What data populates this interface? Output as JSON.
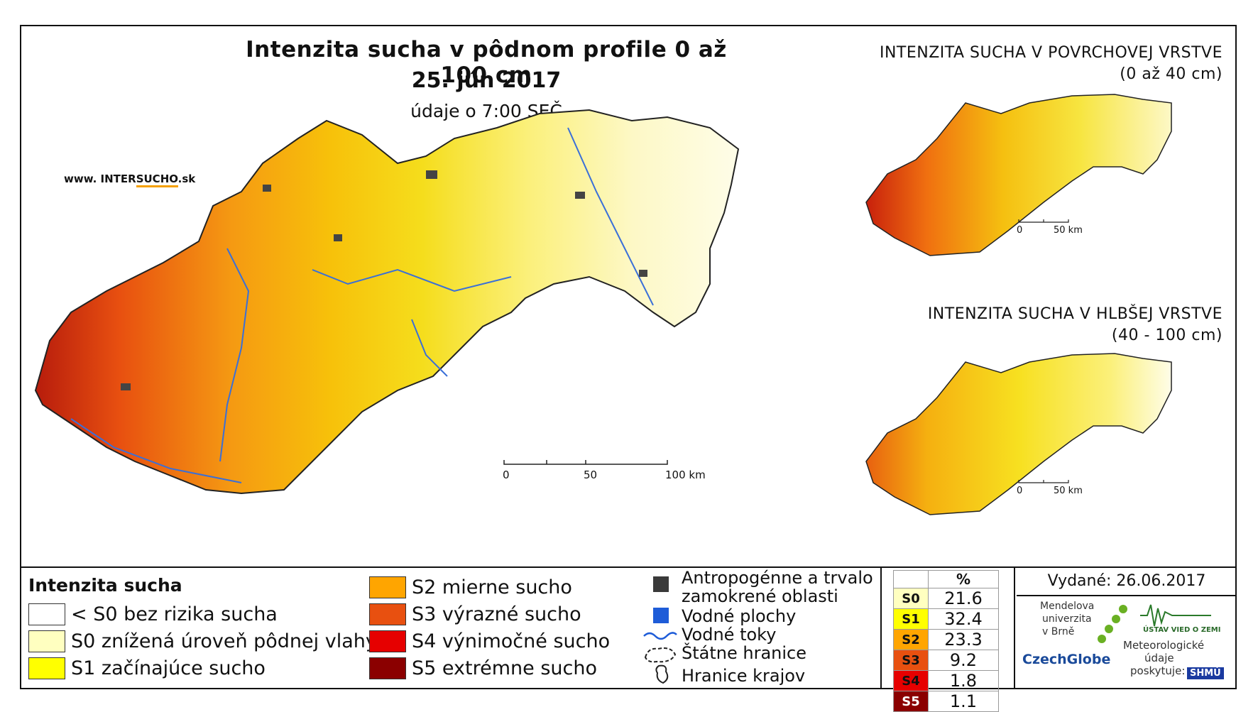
{
  "title": {
    "main": "Intenzita sucha v pôdnom profile 0 až 100 cm",
    "date": "25. jún 2017",
    "time": "údaje o 7:00 SEČ"
  },
  "website": {
    "prefix": "www. INTER",
    "accent": "SUCHO",
    "suffix": ".sk"
  },
  "main_scale": {
    "labels": [
      "0",
      "50",
      "100 km"
    ]
  },
  "insets": [
    {
      "title_line1": "INTENZITA SUCHA V POVRCHOVEJ VRSTVE",
      "title_line2": "(0 až 40 cm)",
      "scale_labels": [
        "0",
        "50 km"
      ]
    },
    {
      "title_line1": "INTENZITA SUCHA V HLBŠEJ VRSTVE",
      "title_line2": "(40 - 100 cm)",
      "scale_labels": [
        "0",
        "50 km"
      ]
    }
  ],
  "legend": {
    "title": "Intenzita sucha",
    "classes": [
      {
        "label": "< S0 bez rizika sucha",
        "color": "#ffffff"
      },
      {
        "label": "S0 znížená úroveň pôdnej vlahy",
        "color": "#ffffc0"
      },
      {
        "label": "S1 začínajúce sucho",
        "color": "#ffff00"
      },
      {
        "label": "S2 mierne sucho",
        "color": "#ffa500"
      },
      {
        "label": "S3 výrazné sucho",
        "color": "#e85010"
      },
      {
        "label": "S4 výnimočné sucho",
        "color": "#e60000"
      },
      {
        "label": "S5 extrémne sucho",
        "color": "#8b0000"
      }
    ],
    "other": {
      "anthropogenic_line1": "Antropogénne a trvalo",
      "anthropogenic_line2": "zamokrené oblasti",
      "water_areas": "Vodné plochy",
      "rivers": "Vodné toky",
      "borders": "Štátne hranice",
      "regions": "Hranice krajov"
    }
  },
  "percent_table": {
    "header": "%",
    "rows": [
      {
        "code": "S0",
        "value": "21.6",
        "color": "#ffffc0"
      },
      {
        "code": "S1",
        "value": "32.4",
        "color": "#ffff00"
      },
      {
        "code": "S2",
        "value": "23.3",
        "color": "#ffa500"
      },
      {
        "code": "S3",
        "value": "9.2",
        "color": "#e85010"
      },
      {
        "code": "S4",
        "value": "1.8",
        "color": "#e60000"
      },
      {
        "code": "S5",
        "value": "1.1",
        "color": "#8b0000"
      }
    ]
  },
  "issued": "Vydané: 26.06.2017",
  "logos": {
    "mendel_line1": "Mendelova",
    "mendel_line2": "univerzita",
    "mendel_line3": "v Brně",
    "czechglobe": "CzechGlobe",
    "ustav": "ÚSTAV VIED O ZEMI",
    "meteo_line1": "Meteorologické",
    "meteo_line2": "údaje",
    "meteo_line3": "poskytuje:",
    "shmu": "SHMÚ"
  }
}
